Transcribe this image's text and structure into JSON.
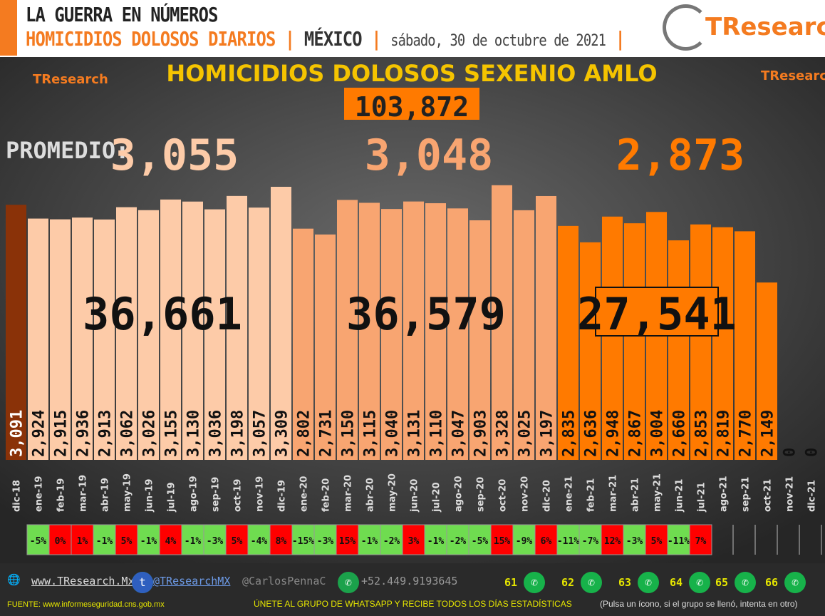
{
  "header": {
    "line1": "LA GUERRA EN NÚMEROS",
    "line2": "HOMICIDIOS DOLOSOS DIARIOS",
    "country": "MÉXICO",
    "date": "sábado, 30 de octubre de 2021",
    "brand": "TResearch"
  },
  "chart_data": {
    "type": "bar",
    "title": "HOMICIDIOS DOLOSOS SEXENIO AMLO",
    "total": "103,872",
    "promedio_label": "PROMEDIO:",
    "promedios": [
      "3,055",
      "3,048",
      "2,873"
    ],
    "year_totals": [
      "36,661",
      "36,579",
      "27,541"
    ],
    "categories": [
      "dic-18",
      "ene-19",
      "feb-19",
      "mar-19",
      "abr-19",
      "may-19",
      "jun-19",
      "jul-19",
      "ago-19",
      "sep-19",
      "oct-19",
      "nov-19",
      "dic-19",
      "ene-20",
      "feb-20",
      "mar-20",
      "abr-20",
      "may-20",
      "jun-20",
      "jul-20",
      "ago-20",
      "sep-20",
      "oct-20",
      "nov-20",
      "dic-20",
      "ene-21",
      "feb-21",
      "mar-21",
      "abr-21",
      "may-21",
      "jun-21",
      "jul-21",
      "ago-21",
      "sep-21",
      "oct-21",
      "nov-21",
      "dic-21"
    ],
    "values": [
      3091,
      2924,
      2915,
      2936,
      2913,
      3062,
      3026,
      3155,
      3130,
      3036,
      3198,
      3057,
      3309,
      2802,
      2731,
      3150,
      3115,
      3040,
      3131,
      3110,
      3047,
      2903,
      3328,
      3025,
      3197,
      2835,
      2636,
      2948,
      2867,
      3004,
      2660,
      2853,
      2819,
      2770,
      2149,
      0,
      0
    ],
    "pct_change": [
      "",
      "-5%",
      "0%",
      "1%",
      "-1%",
      "5%",
      "-1%",
      "4%",
      "-1%",
      "-3%",
      "5%",
      "-4%",
      "8%",
      "-15%",
      "-3%",
      "15%",
      "-1%",
      "-2%",
      "3%",
      "-1%",
      "-2%",
      "-5%",
      "15%",
      "-9%",
      "6%",
      "-11%",
      "-7%",
      "12%",
      "-3%",
      "5%",
      "-11%",
      "7%",
      "",
      "",
      "",
      "",
      ""
    ],
    "colors": {
      "2018": "#8a3208",
      "2019": "#fdcba8",
      "2020": "#f8a571",
      "2021": "#ff7a00",
      "up": "#ff0000",
      "down": "#6fdc50"
    },
    "ylim": [
      0,
      3400
    ]
  },
  "footer": {
    "web": "www.TResearch.Mx",
    "twitter": "@TResearchMX",
    "handle": "@CarlosPennaC",
    "phone": "+52.449.9193645",
    "groups": [
      "61",
      "62",
      "63",
      "64",
      "65",
      "66"
    ],
    "source": "FUENTE: www.informeseguridad.cns.gob.mx",
    "join": "ÚNETE AL GRUPO DE WHATSAPP Y RECIBE TODOS LOS DÍAS ESTADÍSTICAS",
    "join_note": "(Pulsa un ícono, si el grupo se llenó, intenta en otro)"
  }
}
